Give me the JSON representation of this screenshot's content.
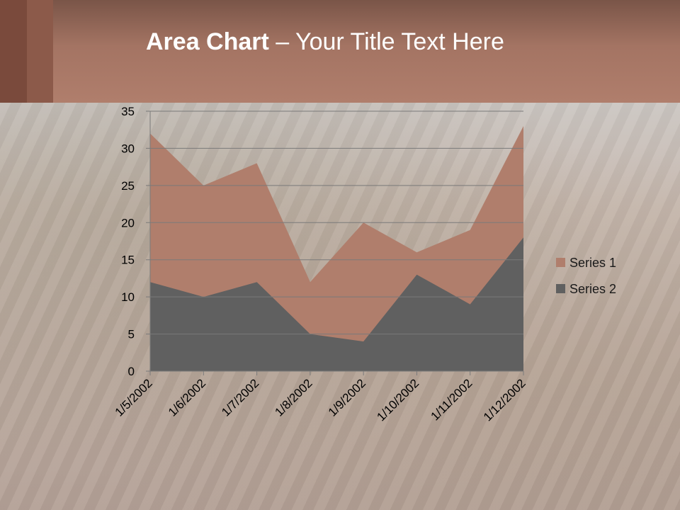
{
  "slide": {
    "title_bold": "Area Chart",
    "title_rest": " – Your Title Text Here"
  },
  "colors": {
    "series1": "#b07e6c",
    "series2": "#606060",
    "gridline": "#7a7a7a",
    "axis": "#7a7a7a"
  },
  "chart_data": {
    "type": "area",
    "x": [
      "1/5/2002",
      "1/6/2002",
      "1/7/2002",
      "1/8/2002",
      "1/9/2002",
      "1/10/2002",
      "1/11/2002",
      "1/12/2002"
    ],
    "series": [
      {
        "name": "Series 1",
        "values": [
          32,
          25,
          28,
          12,
          20,
          16,
          19,
          33
        ]
      },
      {
        "name": "Series 2",
        "values": [
          12,
          10,
          12,
          5,
          4,
          13,
          9,
          18
        ]
      }
    ],
    "ylim": [
      0,
      35
    ],
    "yticks": [
      "0",
      "5",
      "10",
      "15",
      "20",
      "25",
      "30",
      "35"
    ],
    "grid": true,
    "legend": "right"
  }
}
